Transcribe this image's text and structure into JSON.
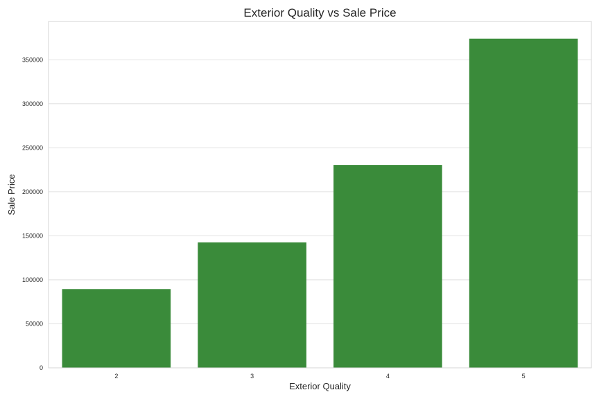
{
  "chart_data": {
    "type": "bar",
    "title": "Exterior Quality vs Sale Price",
    "xlabel": "Exterior Quality",
    "ylabel": "Sale Price",
    "categories": [
      "2",
      "3",
      "4",
      "5"
    ],
    "values": [
      89500,
      142500,
      230500,
      374000
    ],
    "ylim": [
      0,
      393500
    ],
    "yticks": [
      0,
      50000,
      100000,
      150000,
      200000,
      250000,
      300000,
      350000
    ],
    "ytick_labels": [
      "0",
      "50000",
      "100000",
      "150000",
      "200000",
      "250000",
      "300000",
      "350000"
    ],
    "grid": "horizontal",
    "bar_color": "#3a8b3a"
  }
}
